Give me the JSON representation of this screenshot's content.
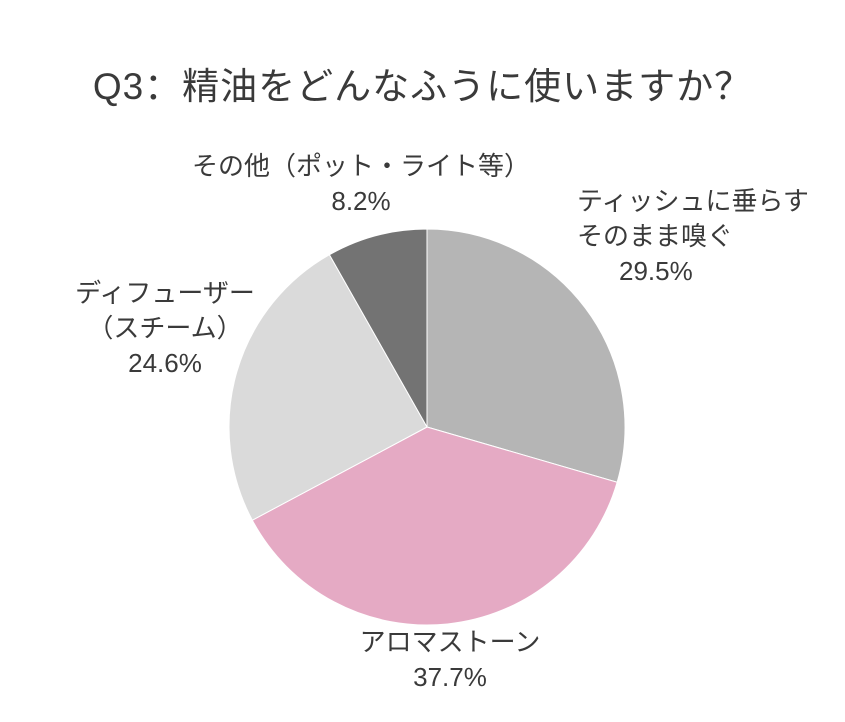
{
  "page": {
    "background_color": "#ffffff",
    "text_color": "#3a3a3a"
  },
  "title": "Q3：精油をどんなふうに使いますか？",
  "chart_data": {
    "type": "pie",
    "title": "Q3：精油をどんなふうに使いますか？",
    "start_angle_deg": 0,
    "direction": "clockwise",
    "legend": "none",
    "labels_outside": true,
    "slice_border_color": "#ffffff",
    "slices": [
      {
        "label": "ティッシュに垂らす そのまま嗅ぐ",
        "value": 29.5,
        "pct_text": "29.5%",
        "color": "#b5b5b5"
      },
      {
        "label": "アロマストーン",
        "value": 37.7,
        "pct_text": "37.7%",
        "color": "#e5aac4"
      },
      {
        "label": "ディフューザー（スチーム）",
        "value": 24.6,
        "pct_text": "24.6%",
        "color": "#dadada"
      },
      {
        "label": "その他（ポット・ライト等）",
        "value": 8.2,
        "pct_text": "8.2%",
        "color": "#737373"
      }
    ]
  },
  "labels": {
    "other": {
      "lines": [
        "その他（ポット・ライト等）"
      ],
      "pct": "8.2%"
    },
    "tissue": {
      "lines": [
        "ティッシュに垂らす",
        "そのまま嗅ぐ"
      ],
      "pct": "29.5%"
    },
    "diffuser": {
      "lines": [
        "ディフューザー",
        "（スチーム）"
      ],
      "pct": "24.6%"
    },
    "stone": {
      "lines": [
        "アロマストーン"
      ],
      "pct": "37.7%"
    }
  }
}
